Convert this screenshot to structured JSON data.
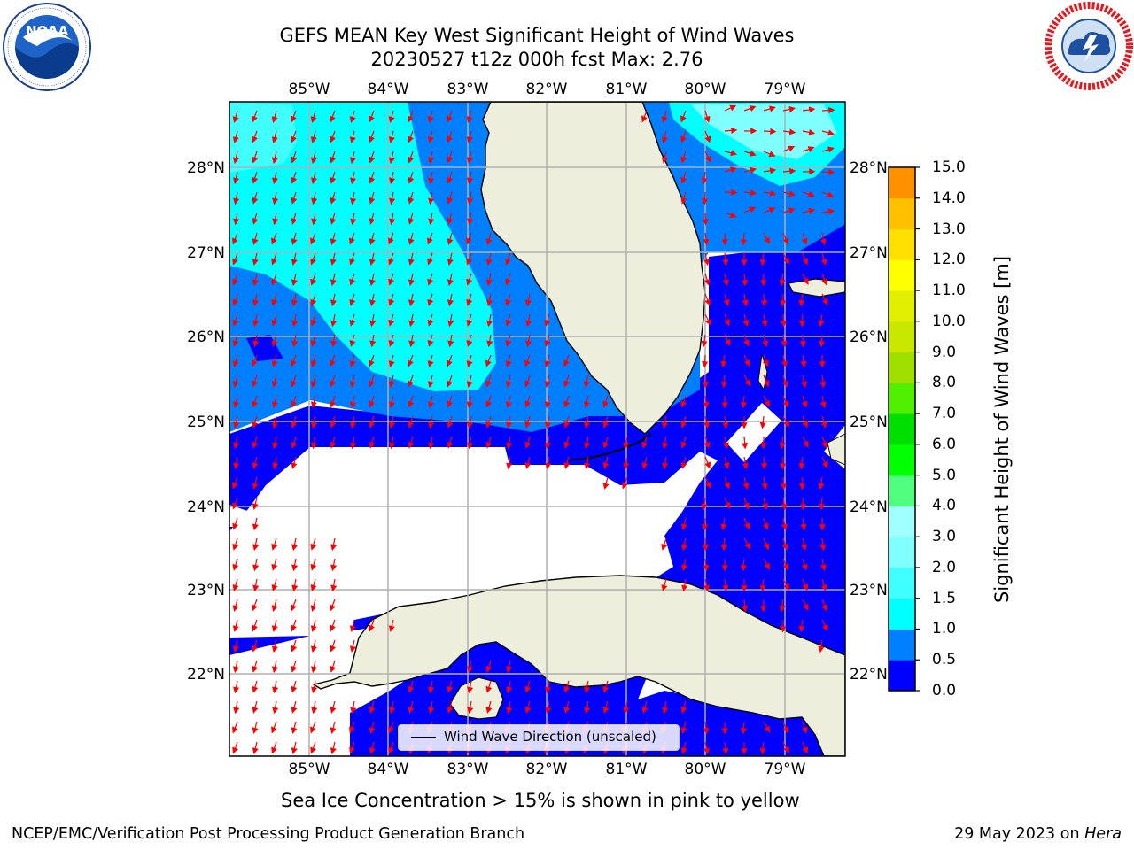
{
  "header": {
    "title_line1": "GEFS MEAN Key West Significant Height of Wind Waves",
    "title_line2": "20230527 t12z 000h fcst   Max: 2.76"
  },
  "logos": {
    "left": {
      "name": "NOAA",
      "ring_text": "NATIONAL OCEANIC AND ATMOSPHERIC ADMINISTRATION · U.S. DEPARTMENT OF COMMERCE"
    },
    "right": {
      "name": "NATIONAL WEATHER SERVICE"
    }
  },
  "map": {
    "lon_labels": [
      "85°W",
      "84°W",
      "83°W",
      "82°W",
      "81°W",
      "80°W",
      "79°W"
    ],
    "lat_labels": [
      "28°N",
      "27°N",
      "26°N",
      "25°N",
      "24°N",
      "23°N",
      "22°N"
    ],
    "legend_label": "Wind Wave Direction (unscaled)",
    "arrow_color": "#ff0000"
  },
  "colorbar": {
    "ticks": [
      "15.0",
      "14.0",
      "13.0",
      "12.0",
      "11.0",
      "10.0",
      "9.0",
      "8.0",
      "7.0",
      "6.0",
      "5.0",
      "4.0",
      "3.0",
      "2.0",
      "1.5",
      "1.0",
      "0.5",
      "0.0"
    ],
    "colors": [
      "#0000ff",
      "#0080ff",
      "#00ffff",
      "#40ffff",
      "#80ffff",
      "#a0ffff",
      "#50ff80",
      "#00ff00",
      "#00e000",
      "#50f000",
      "#a0e000",
      "#c8e800",
      "#e0f000",
      "#ffff00",
      "#ffe000",
      "#ffc000",
      "#ff9000",
      "#ff7000",
      "#ff4000",
      "#ff2000",
      "#ff0000"
    ],
    "label": "Significant Height of Wind Waves [m]"
  },
  "subtitle": "Sea Ice Concentration > 15% is shown in pink to yellow",
  "footer": {
    "left": "NCEP/EMC/Verification Post Processing Product Generation Branch",
    "date": "29 May 2023 on",
    "host": "Hera"
  }
}
